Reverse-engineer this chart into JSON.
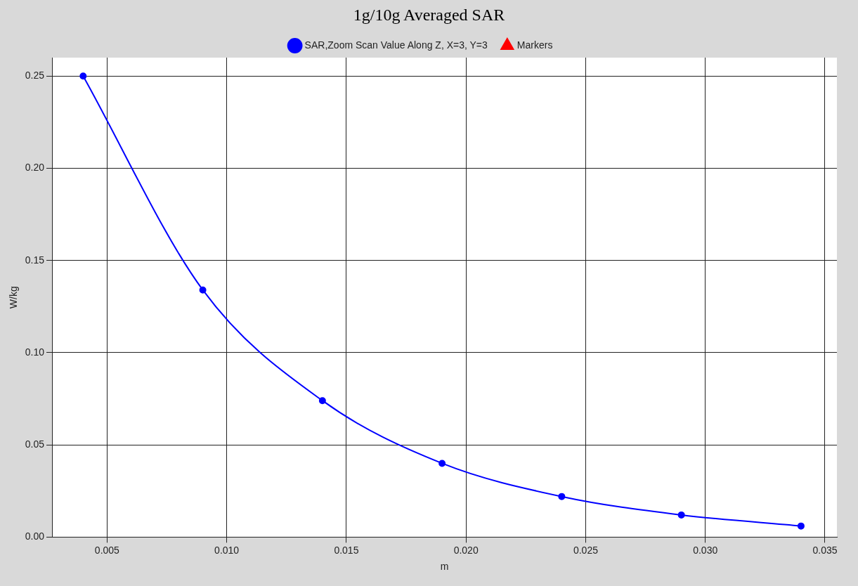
{
  "chart_data": {
    "type": "line",
    "title": "1g/10g Averaged SAR",
    "xlabel": "m",
    "ylabel": "W/kg",
    "x": [
      0.004,
      0.009,
      0.014,
      0.019,
      0.024,
      0.029,
      0.034
    ],
    "series": [
      {
        "name": "SAR,Zoom Scan Value Along Z, X=3, Y=3",
        "color": "#0000ff",
        "values": [
          0.25,
          0.134,
          0.074,
          0.04,
          0.022,
          0.012,
          0.006
        ],
        "marker": "circle"
      },
      {
        "name": "Markers",
        "color": "#ff0000",
        "values": [
          null,
          null,
          null,
          null,
          null,
          null,
          null
        ],
        "marker": "triangle"
      }
    ],
    "xlim": [
      0.0027,
      0.0355
    ],
    "xticks": [
      0.005,
      {
        "value": 0.01,
        "label": "0.010"
      },
      0.015,
      {
        "value": 0.02,
        "label": "0.020"
      },
      0.025,
      {
        "value": 0.03,
        "label": "0.030"
      },
      0.035
    ],
    "ylim": [
      0,
      0.26
    ],
    "yticks": [
      {
        "value": 0,
        "label": "0.00"
      },
      0.05,
      {
        "value": 0.1,
        "label": "0.10"
      },
      0.15,
      {
        "value": 0.2,
        "label": "0.20"
      },
      0.25
    ],
    "grid": true,
    "legend": "top",
    "line_style": "solid"
  }
}
